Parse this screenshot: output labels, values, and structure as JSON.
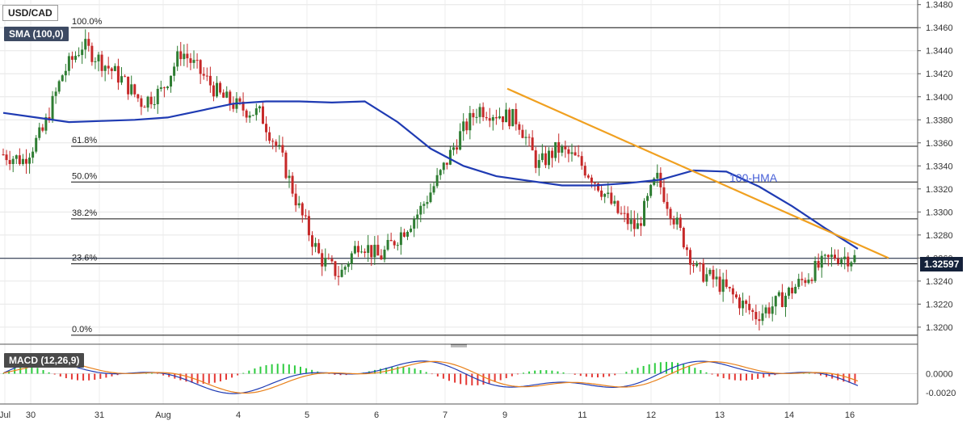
{
  "symbol_label": "USD/CAD",
  "sma_label": "SMA (100,0)",
  "macd_label": "MACD (12,26,9)",
  "hma_label": "100-HMA",
  "last_price": "1.32597",
  "colors": {
    "up": "#2e7d32",
    "down": "#c62828",
    "hma": "#1f3bb3",
    "trend": "#f0a020",
    "macd_line": "#1f3bb3",
    "signal_line": "#e8801a",
    "hist_up": "#2ecc40",
    "hist_down": "#e53935"
  },
  "chart_data": {
    "type": "candlestick",
    "price_axis": {
      "ticks": [
        "1.3480",
        "1.3460",
        "1.3440",
        "1.3420",
        "1.3400",
        "1.3380",
        "1.3360",
        "1.3340",
        "1.3320",
        "1.3300",
        "1.3280",
        "1.3260",
        "1.3240",
        "1.3220",
        "1.3200"
      ],
      "ylim": [
        1.3188,
        1.3484
      ]
    },
    "time_axis": {
      "ticks": [
        "Jul",
        "30",
        "31",
        "Aug",
        "4",
        "5",
        "6",
        "7",
        "9",
        "11",
        "12",
        "13",
        "14",
        "16"
      ]
    },
    "fibonacci": [
      {
        "label": "100.0%",
        "price": 1.346
      },
      {
        "label": "61.8%",
        "price": 1.3357
      },
      {
        "label": "50.0%",
        "price": 1.3326
      },
      {
        "label": "38.2%",
        "price": 1.3294
      },
      {
        "label": "23.6%",
        "price": 1.3255
      },
      {
        "label": "0.0%",
        "price": 1.3193
      }
    ],
    "trendline": {
      "from": {
        "x": "9",
        "price": 1.3407
      },
      "to": {
        "x": "16",
        "price": 1.326
      }
    },
    "hma_100": [
      1.3386,
      1.3382,
      1.3378,
      1.3379,
      1.338,
      1.3382,
      1.3388,
      1.3394,
      1.3396,
      1.3396,
      1.3395,
      1.3396,
      1.3378,
      1.3355,
      1.334,
      1.3331,
      1.3327,
      1.3323,
      1.3323,
      1.3325,
      1.3328,
      1.3336,
      1.3335,
      1.3322,
      1.3305,
      1.3286,
      1.3268
    ],
    "ohlc_sample_closes": [
      1.335,
      1.3345,
      1.337,
      1.342,
      1.3445,
      1.343,
      1.3415,
      1.3395,
      1.3405,
      1.344,
      1.342,
      1.34,
      1.339,
      1.3385,
      1.335,
      1.33,
      1.326,
      1.3245,
      1.3275,
      1.326,
      1.328,
      1.33,
      1.333,
      1.3365,
      1.339,
      1.3385,
      1.338,
      1.334,
      1.3355,
      1.3345,
      1.3325,
      1.33,
      1.3285,
      1.333,
      1.329,
      1.325,
      1.324,
      1.3225,
      1.321,
      1.322,
      1.3235,
      1.325,
      1.3262,
      1.326
    ],
    "macd": {
      "ticks": [
        "0.0000",
        "-0.0020"
      ],
      "ylim": [
        -0.0032,
        0.0026
      ]
    }
  }
}
